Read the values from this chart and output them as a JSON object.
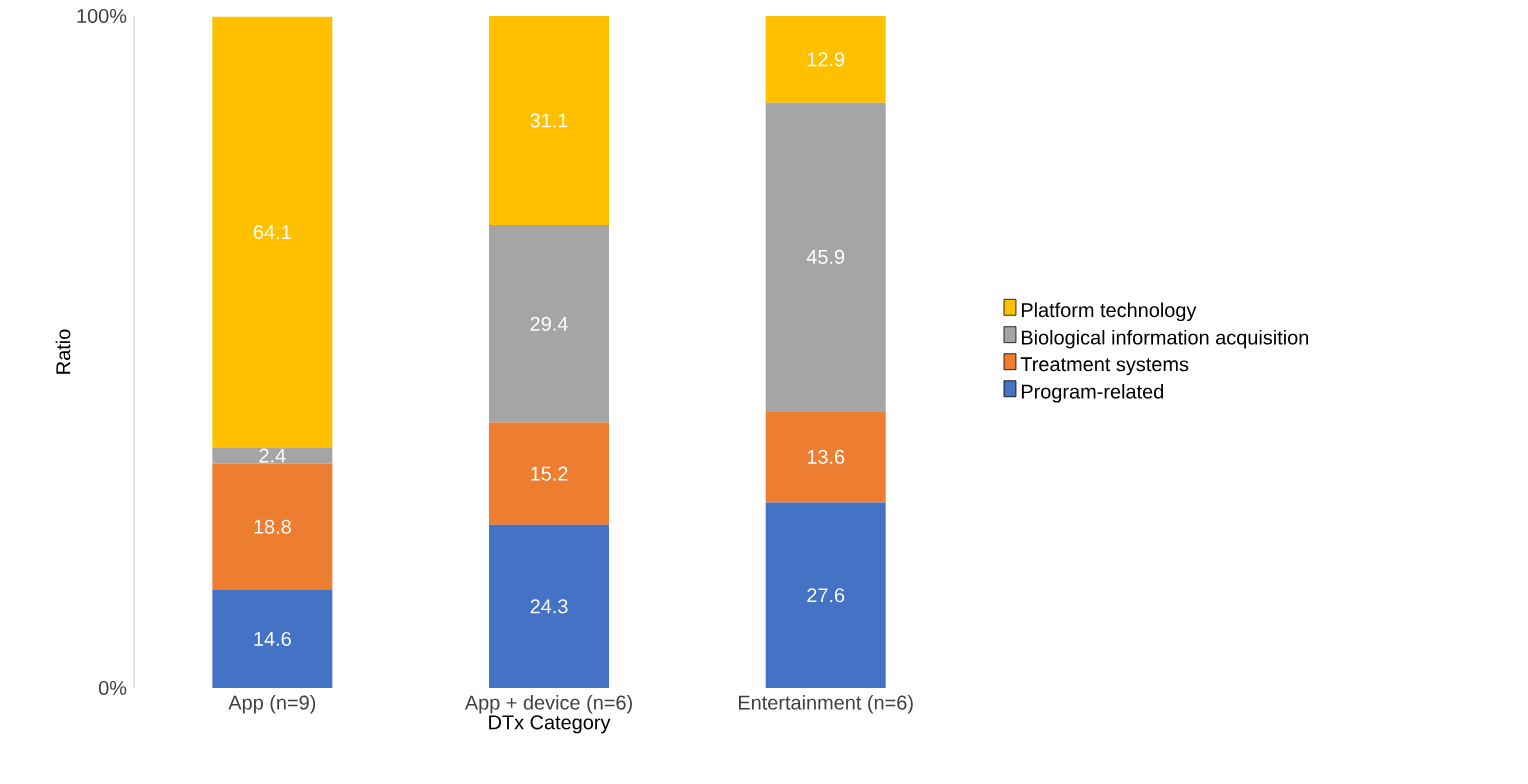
{
  "chart_data": {
    "type": "bar",
    "stacked": true,
    "xlabel": "DTx Category",
    "ylabel": "Ratio",
    "categories": [
      "App (n=9)",
      "App + device (n=6)",
      "Entertainment (n=6)"
    ],
    "series": [
      {
        "name": "Program-related",
        "color": "#4472c4",
        "values": [
          14.6,
          24.3,
          27.6
        ]
      },
      {
        "name": "Treatment systems",
        "color": "#ed7d31",
        "values": [
          18.8,
          15.2,
          13.6
        ]
      },
      {
        "name": "Biological information acquisition",
        "color": "#a5a5a5",
        "values": [
          2.4,
          29.4,
          45.9
        ]
      },
      {
        "name": "Platform technology",
        "color": "#ffc000",
        "values": [
          64.1,
          31.1,
          12.9
        ]
      }
    ],
    "ylim": [
      0,
      100
    ],
    "yticks": [
      {
        "value": 0,
        "label": "0%"
      },
      {
        "value": 100,
        "label": "100%"
      }
    ],
    "data_labels": true,
    "legend": "right"
  }
}
